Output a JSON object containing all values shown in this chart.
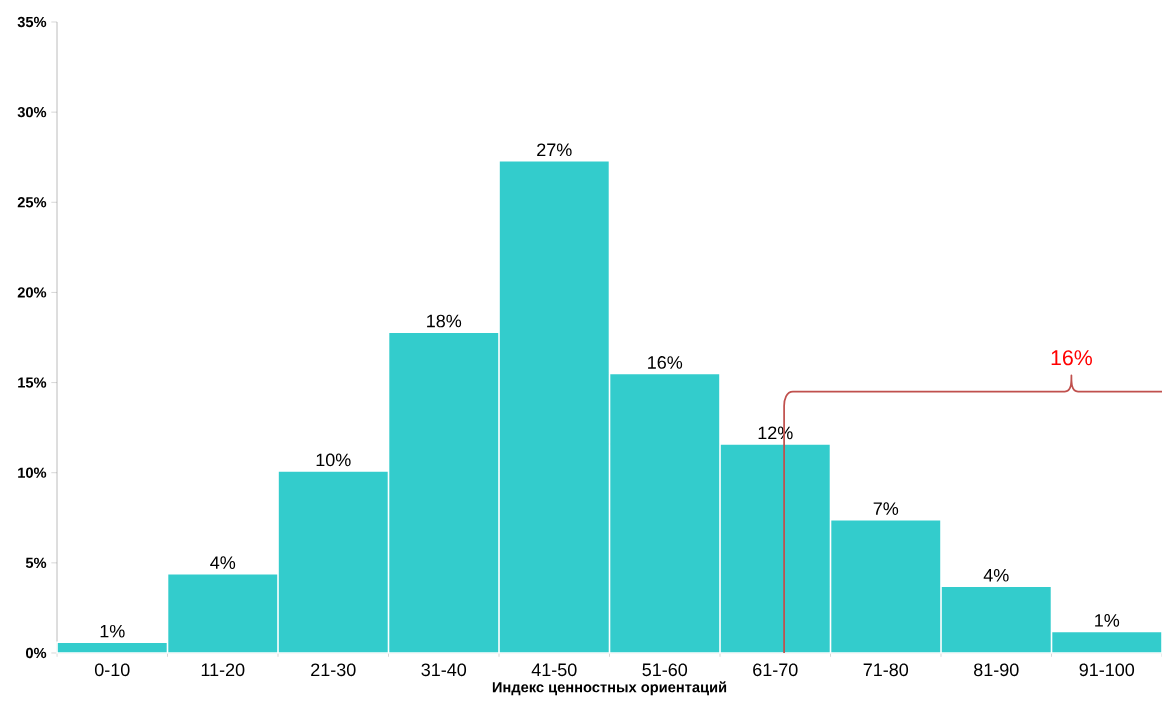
{
  "chart_data": {
    "type": "bar",
    "xlabel": "Индекс ценностных ориентаций",
    "categories": [
      "0-10",
      "11-20",
      "21-30",
      "31-40",
      "41-50",
      "51-60",
      "61-70",
      "71-80",
      "81-90",
      "91-100"
    ],
    "values": [
      0.6,
      4.4,
      10.1,
      17.8,
      27.3,
      15.5,
      11.6,
      7.4,
      3.7,
      1.2
    ],
    "value_labels": [
      "1%",
      "4%",
      "10%",
      "18%",
      "27%",
      "16%",
      "12%",
      "7%",
      "4%",
      "1%"
    ],
    "color": "#33cccc",
    "ylim": [
      0,
      35
    ],
    "yticks": [
      {
        "value": 0,
        "label": "0%"
      },
      {
        "value": 5,
        "label": "5%"
      },
      {
        "value": 10,
        "label": "10%"
      },
      {
        "value": 15,
        "label": "15%"
      },
      {
        "value": 20,
        "label": "20%"
      },
      {
        "value": 25,
        "label": "25%"
      },
      {
        "value": 30,
        "label": "30%"
      },
      {
        "value": 35,
        "label": "35%"
      }
    ],
    "annotations": [
      "16%"
    ],
    "grid": false
  }
}
